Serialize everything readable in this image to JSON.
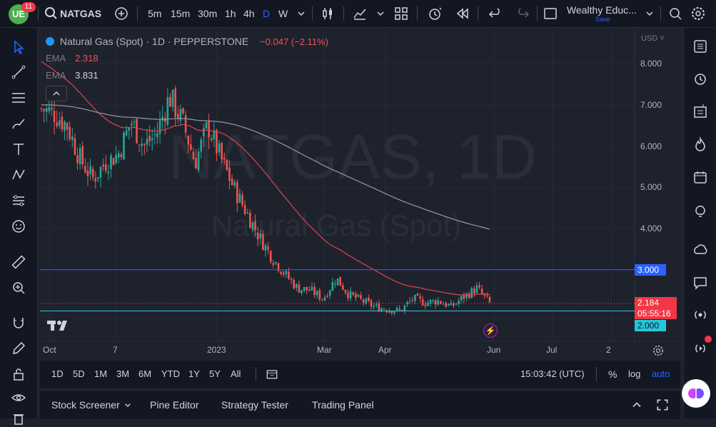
{
  "topbar": {
    "notification_count": "11",
    "symbol": "NATGAS",
    "intervals": [
      "5m",
      "15m",
      "30m",
      "1h",
      "4h",
      "D",
      "W"
    ],
    "active_interval": "D",
    "layout_name": "Wealthy Educ...",
    "save_label": "Save"
  },
  "legend": {
    "title": "Natural Gas (Spot) · 1D · PEPPERSTONE",
    "change": "−0.047 (−2.11%)",
    "ema1_label": "EMA",
    "ema1_value": "2.318",
    "ema2_label": "EMA",
    "ema2_value": "3.831"
  },
  "watermark": {
    "line1": "NATGAS, 1D",
    "line2": "Natural Gas (Spot)"
  },
  "price_axis": {
    "currency": "USD",
    "ticks": [
      "8.000",
      "7.000",
      "6.000",
      "5.000",
      "4.000"
    ],
    "line_3_label": "3.000",
    "line_2_label": "2.000",
    "last_price": "2.184",
    "countdown": "05:55:16"
  },
  "time_axis": {
    "ticks": [
      "Oct",
      "7",
      "2023",
      "Mar",
      "Apr",
      "Jun",
      "Jul",
      "2"
    ]
  },
  "range_bar": {
    "ranges": [
      "1D",
      "5D",
      "1M",
      "3M",
      "6M",
      "YTD",
      "1Y",
      "5Y",
      "All"
    ],
    "clock": "15:03:42 (UTC)",
    "percent": "%",
    "log": "log",
    "auto": "auto"
  },
  "panel_bar": {
    "tabs": [
      "Stock Screener",
      "Pine Editor",
      "Strategy Tester",
      "Trading Panel"
    ]
  },
  "colors": {
    "up": "#26a69a",
    "down": "#ef5350",
    "ema_fast": "#e0444a",
    "ema_slow": "#9598a1",
    "hline": "#2962ff",
    "accent": "#2962ff"
  },
  "chart_data": {
    "type": "candlestick",
    "series_name": "Natural Gas (Spot)",
    "ylim": [
      1.6,
      8.3
    ],
    "x_ticks": [
      "Oct",
      "7",
      "2023",
      "Mar",
      "Apr",
      "Jun",
      "Jul",
      "2"
    ],
    "close_path": [
      {
        "x": "Sep 26",
        "y": 6.9
      },
      {
        "x": "Oct 3",
        "y": 6.8
      },
      {
        "x": "Oct 10",
        "y": 6.5
      },
      {
        "x": "Oct 17",
        "y": 5.7
      },
      {
        "x": "Oct 24",
        "y": 5.2
      },
      {
        "x": "Oct 31",
        "y": 5.6
      },
      {
        "x": "Nov 7",
        "y": 5.8
      },
      {
        "x": "Nov 14",
        "y": 6.6
      },
      {
        "x": "Nov 21",
        "y": 6.0
      },
      {
        "x": "Nov 28",
        "y": 6.3
      },
      {
        "x": "Dec 5",
        "y": 7.2
      },
      {
        "x": "Dec 12",
        "y": 6.6
      },
      {
        "x": "Dec 19",
        "y": 5.6
      },
      {
        "x": "Dec 26",
        "y": 6.5
      },
      {
        "x": "Jan 2",
        "y": 5.7
      },
      {
        "x": "Jan 9",
        "y": 5.0
      },
      {
        "x": "Jan 16",
        "y": 4.4
      },
      {
        "x": "Jan 23",
        "y": 3.8
      },
      {
        "x": "Jan 30",
        "y": 3.3
      },
      {
        "x": "Feb 6",
        "y": 2.9
      },
      {
        "x": "Feb 13",
        "y": 2.55
      },
      {
        "x": "Feb 20",
        "y": 2.5
      },
      {
        "x": "Feb 27",
        "y": 2.3
      },
      {
        "x": "Mar 6",
        "y": 2.8
      },
      {
        "x": "Mar 13",
        "y": 2.4
      },
      {
        "x": "Mar 20",
        "y": 2.25
      },
      {
        "x": "Mar 27",
        "y": 2.1
      },
      {
        "x": "Apr 3",
        "y": 2.05
      },
      {
        "x": "Apr 10",
        "y": 2.0
      },
      {
        "x": "Apr 17",
        "y": 2.3
      },
      {
        "x": "Apr 24",
        "y": 2.2
      },
      {
        "x": "May 1",
        "y": 2.25
      },
      {
        "x": "May 8",
        "y": 2.1
      },
      {
        "x": "May 15",
        "y": 2.35
      },
      {
        "x": "May 22",
        "y": 2.55
      },
      {
        "x": "May 30",
        "y": 2.184
      }
    ],
    "ema_fast_last": 2.318,
    "ema_slow_last": 3.831,
    "horizontal_lines": [
      3.0,
      2.0
    ],
    "last_close": 2.184
  }
}
